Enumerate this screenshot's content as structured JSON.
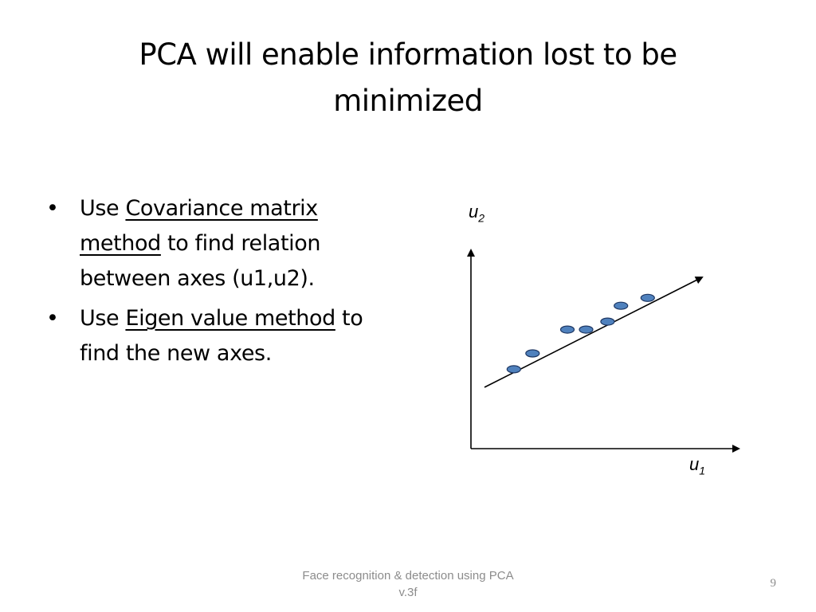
{
  "slide": {
    "title_line1": "PCA will enable information lost to be",
    "title_line2": "minimized",
    "bullets": [
      {
        "pre": "Use ",
        "underlined": "Covariance matrix method",
        "post": " to find relation between axes (u1,u2)."
      },
      {
        "pre": "Use ",
        "underlined": "Eigen value method",
        "post": " to find the new axes."
      }
    ],
    "diagram": {
      "y_axis_label": "u",
      "y_axis_sub": "2",
      "x_axis_label": "u",
      "x_axis_sub": "1",
      "point_color": "#4f81bd",
      "point_stroke": "#1f3864",
      "points": [
        {
          "u1": 0.16,
          "u2": 0.4
        },
        {
          "u1": 0.23,
          "u2": 0.48
        },
        {
          "u1": 0.36,
          "u2": 0.6
        },
        {
          "u1": 0.43,
          "u2": 0.6
        },
        {
          "u1": 0.51,
          "u2": 0.64
        },
        {
          "u1": 0.56,
          "u2": 0.72
        },
        {
          "u1": 0.66,
          "u2": 0.76
        }
      ]
    },
    "footer_line1": "Face recognition & detection using PCA",
    "footer_line2": "v.3f",
    "page_number": "9"
  }
}
